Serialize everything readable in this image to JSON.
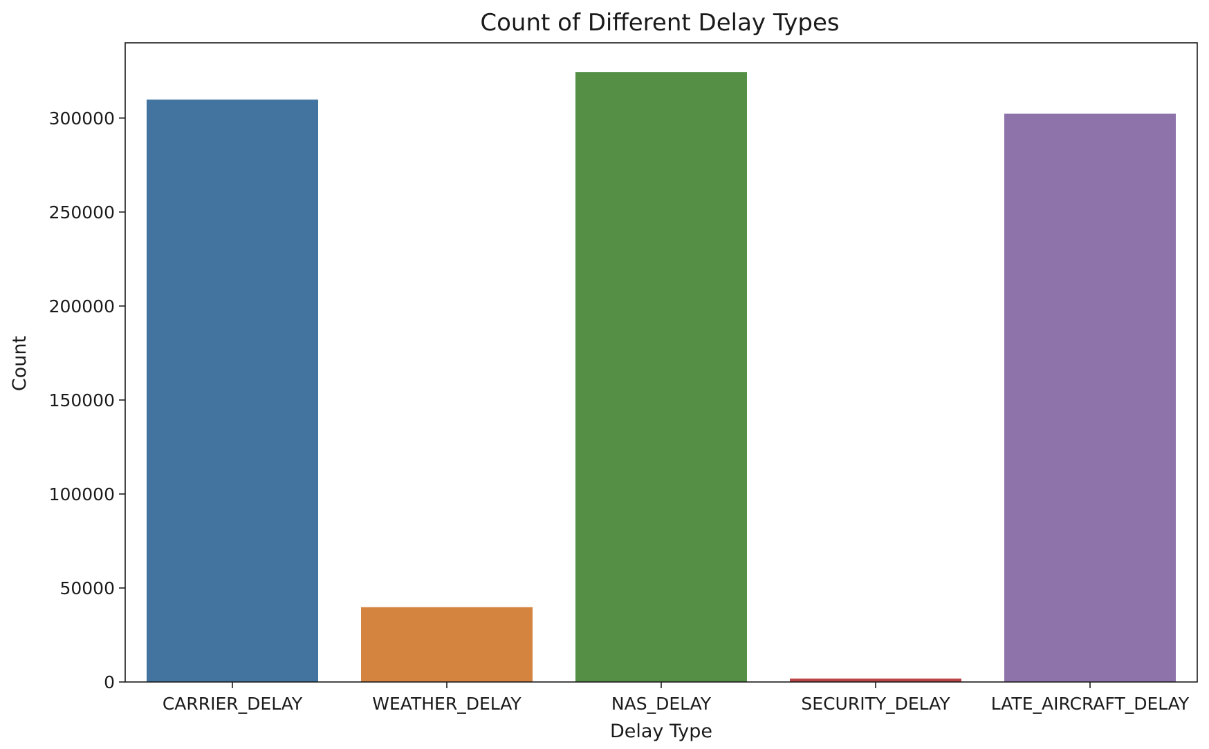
{
  "chart_data": {
    "type": "bar",
    "title": "Count of Different Delay Types",
    "xlabel": "Delay Type",
    "ylabel": "Count",
    "categories": [
      "CARRIER_DELAY",
      "WEATHER_DELAY",
      "NAS_DELAY",
      "SECURITY_DELAY",
      "LATE_AIRCRAFT_DELAY"
    ],
    "values": [
      309800,
      39800,
      324500,
      1800,
      302300
    ],
    "colors": [
      "#4374a0",
      "#d5843f",
      "#548f45",
      "#b94444",
      "#8e73ab"
    ],
    "ylim": [
      0,
      340000
    ],
    "yticks": [
      0,
      50000,
      100000,
      150000,
      200000,
      250000,
      300000
    ],
    "ytick_labels": [
      "0",
      "50000",
      "100000",
      "150000",
      "200000",
      "250000",
      "300000"
    ],
    "grid": false,
    "legend": false
  }
}
